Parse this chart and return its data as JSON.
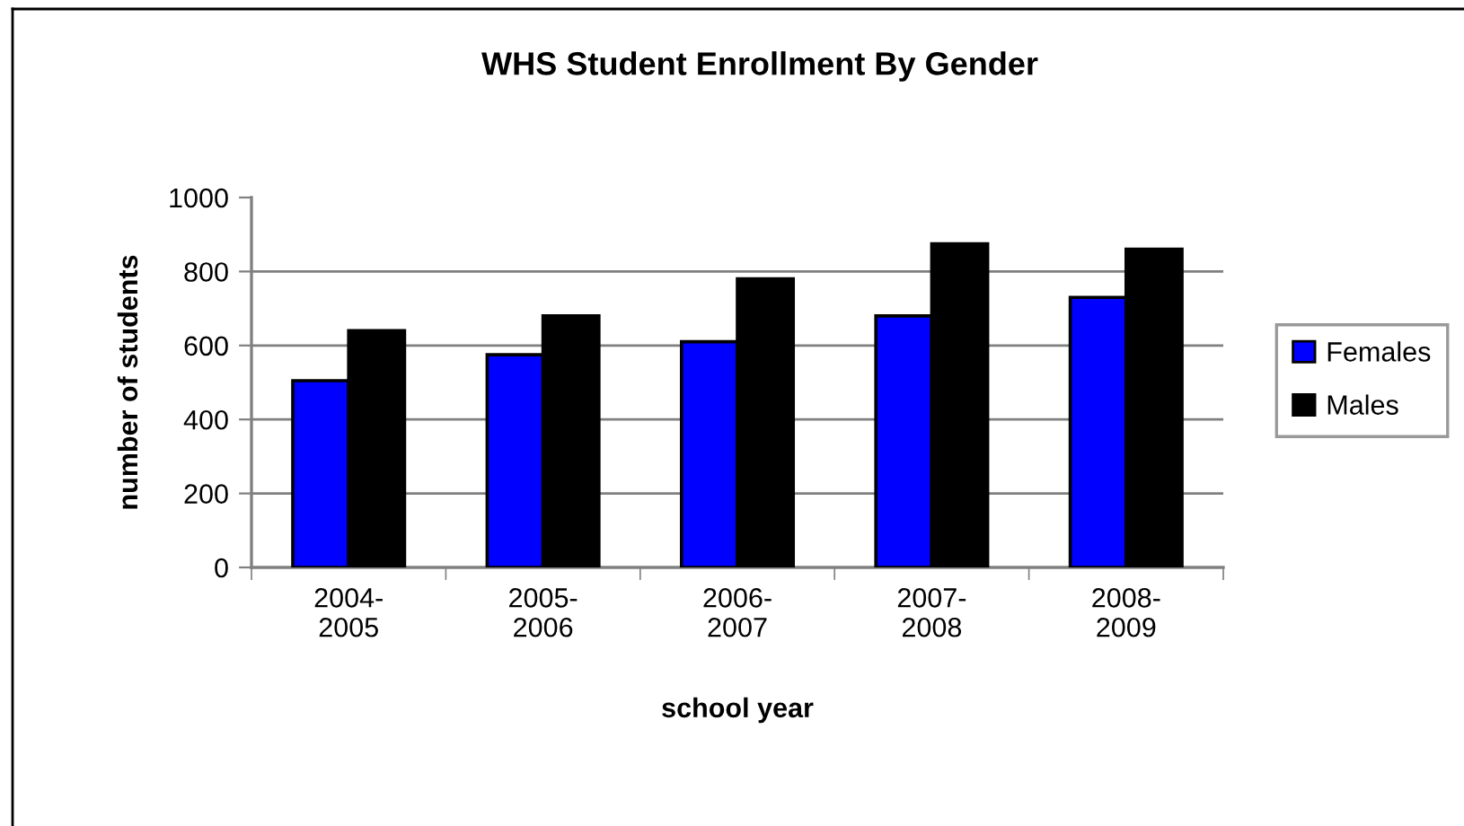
{
  "chart_data": {
    "type": "bar",
    "title": "WHS Student Enrollment By Gender",
    "xlabel": "school year",
    "ylabel": "number of students",
    "categories": [
      "2004-2005",
      "2005-2006",
      "2006-2007",
      "2007-2008",
      "2008-2009"
    ],
    "series": [
      {
        "name": "Females",
        "color": "#0000ff",
        "values": [
          505,
          575,
          610,
          680,
          730
        ]
      },
      {
        "name": "Males",
        "color": "#000000",
        "values": [
          640,
          680,
          780,
          875,
          860
        ]
      }
    ],
    "ylim": [
      0,
      1000
    ],
    "yticks": [
      0,
      200,
      400,
      600,
      800,
      1000
    ],
    "grid": "y",
    "legend": "right"
  }
}
